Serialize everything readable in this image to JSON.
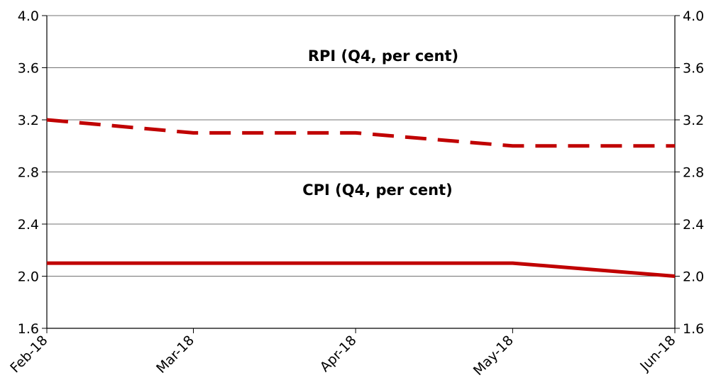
{
  "chart_data": {
    "type": "line",
    "x": [
      "Feb-18",
      "Mar-18",
      "Apr-18",
      "May-18",
      "Jun-18"
    ],
    "x_positions_days": [
      0,
      28,
      59,
      89,
      120
    ],
    "ylim": [
      1.6,
      4.0
    ],
    "yticks": [
      "1.6",
      "2.0",
      "2.4",
      "2.8",
      "3.2",
      "3.6",
      "4.0"
    ],
    "grid": true,
    "series": [
      {
        "name": "RPI (Q4, per cent)",
        "style": "dashed",
        "color": "#c00000",
        "values": [
          3.2,
          3.1,
          3.1,
          3.0,
          3.0
        ]
      },
      {
        "name": "CPI (Q4, per cent)",
        "style": "solid",
        "color": "#c00000",
        "values": [
          2.1,
          2.1,
          2.1,
          2.1,
          2.0
        ]
      }
    ]
  }
}
